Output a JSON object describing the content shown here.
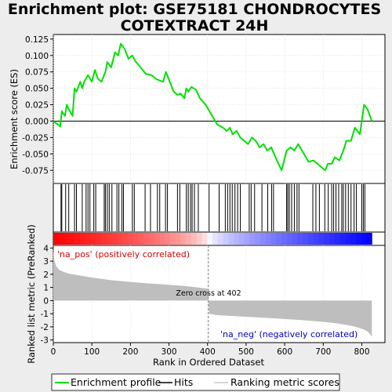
{
  "chart_data": {
    "type": "line",
    "title_line1": "Enrichment plot: GSE75181 CHONDROCYTES",
    "title_line2": "COTEXTRACT 24H",
    "ylabel_es": "Enrichment score (ES)",
    "ylabel_rank": "Ranked list metric (PreRanked)",
    "xlabel": "Rank in Ordered Dataset",
    "xlim": [
      0,
      860
    ],
    "es_ylim": [
      -0.095,
      0.132
    ],
    "rank_ylim": [
      -3.2,
      4.2
    ],
    "es_yticks": [
      "0.125",
      "0.100",
      "0.075",
      "0.050",
      "0.025",
      "0.000",
      "-0.025",
      "-0.050",
      "-0.075"
    ],
    "es_ytick_values": [
      0.125,
      0.1,
      0.075,
      0.05,
      0.025,
      0.0,
      -0.025,
      -0.05,
      -0.075
    ],
    "rank_yticks": [
      "4",
      "3",
      "2",
      "1",
      "0",
      "-1",
      "-2",
      "-3"
    ],
    "rank_ytick_values": [
      4,
      3,
      2,
      1,
      0,
      -1,
      -2,
      -3
    ],
    "xticks": [
      "0",
      "100",
      "200",
      "300",
      "400",
      "500",
      "600",
      "700",
      "800"
    ],
    "xtick_values": [
      0,
      100,
      200,
      300,
      400,
      500,
      600,
      700,
      800
    ],
    "n_genes": 826,
    "zero_cross_rank": 402,
    "zero_cross_label": "Zero cross at 402",
    "pos_label": "'na_pos' (positively correlated)",
    "neg_label": "'na_neg' (negatively correlated)",
    "es_profile": {
      "name": "Enrichment profile",
      "x": [
        0,
        18,
        22,
        30,
        35,
        40,
        50,
        55,
        60,
        70,
        75,
        80,
        90,
        100,
        108,
        115,
        125,
        135,
        140,
        150,
        160,
        168,
        175,
        185,
        195,
        205,
        212,
        222,
        240,
        255,
        265,
        275,
        285,
        292,
        302,
        312,
        322,
        330,
        340,
        345,
        350,
        358,
        370,
        380,
        395,
        410,
        425,
        440,
        450,
        458,
        465,
        475,
        485,
        495,
        505,
        515,
        525,
        535,
        545,
        555,
        565,
        580,
        592,
        605,
        615,
        625,
        635,
        650,
        662,
        675,
        685,
        695,
        705,
        712,
        722,
        730,
        742,
        752,
        760,
        772,
        782,
        795,
        806,
        815,
        826
      ],
      "y": [
        0.0,
        -0.008,
        0.015,
        0.008,
        0.025,
        0.018,
        0.008,
        0.05,
        0.045,
        0.06,
        0.05,
        0.06,
        0.07,
        0.06,
        0.078,
        0.065,
        0.06,
        0.075,
        0.09,
        0.082,
        0.105,
        0.1,
        0.118,
        0.11,
        0.095,
        0.1,
        0.092,
        0.085,
        0.072,
        0.07,
        0.065,
        0.062,
        0.06,
        0.075,
        0.06,
        0.045,
        0.04,
        0.042,
        0.035,
        0.05,
        0.045,
        0.052,
        0.048,
        0.035,
        0.025,
        0.01,
        -0.005,
        -0.01,
        -0.015,
        -0.01,
        -0.02,
        -0.015,
        -0.025,
        -0.03,
        -0.035,
        -0.025,
        -0.03,
        -0.04,
        -0.035,
        -0.045,
        -0.04,
        -0.06,
        -0.075,
        -0.045,
        -0.04,
        -0.045,
        -0.035,
        -0.05,
        -0.062,
        -0.06,
        -0.065,
        -0.07,
        -0.075,
        -0.065,
        -0.065,
        -0.055,
        -0.06,
        -0.045,
        -0.03,
        -0.03,
        -0.01,
        -0.02,
        0.025,
        0.018,
        0.0
      ]
    },
    "hits": {
      "name": "Hits",
      "x": [
        20,
        22,
        32,
        40,
        55,
        60,
        75,
        85,
        90,
        95,
        105,
        110,
        132,
        135,
        140,
        145,
        152,
        165,
        170,
        178,
        182,
        205,
        210,
        238,
        252,
        270,
        276,
        291,
        296,
        322,
        328,
        345,
        350,
        356,
        360,
        366,
        376,
        404,
        430,
        446,
        452,
        458,
        464,
        471,
        478,
        485,
        508,
        513,
        522,
        541,
        556,
        566,
        571,
        605,
        608,
        612,
        618,
        625,
        632,
        637,
        673,
        681,
        690,
        704,
        713,
        722,
        727,
        733,
        740,
        748,
        752,
        758,
        765,
        772,
        780,
        786,
        800,
        804,
        808
      ]
    },
    "metric": {
      "name": "Ranking metric scores",
      "x": [
        0,
        3,
        8,
        15,
        25,
        40,
        60,
        100,
        150,
        200,
        250,
        300,
        350,
        380,
        400,
        402,
        404,
        420,
        480,
        540,
        600,
        650,
        700,
        740,
        770,
        790,
        805,
        815,
        820,
        826
      ],
      "y": [
        3.8,
        3.0,
        2.6,
        2.35,
        2.2,
        2.05,
        1.95,
        1.75,
        1.55,
        1.42,
        1.3,
        1.2,
        1.08,
        0.98,
        0.9,
        0.0,
        -1.0,
        -1.1,
        -1.2,
        -1.3,
        -1.4,
        -1.5,
        -1.62,
        -1.75,
        -1.9,
        -2.05,
        -2.2,
        -2.35,
        -2.5,
        -2.75
      ]
    },
    "legend_entries": [
      "Enrichment profile",
      "Hits",
      "Ranking metric scores"
    ],
    "colors": {
      "es_line": "#00e000",
      "hits": "#000000",
      "metric_fill": "#bebebe",
      "pos_text": "#d00000",
      "neg_text": "#0000c0",
      "zero_line": "#808080",
      "legend_metric": "#c8c8c8",
      "heat_red": "#ff0000",
      "heat_blue": "#0000ff"
    }
  }
}
